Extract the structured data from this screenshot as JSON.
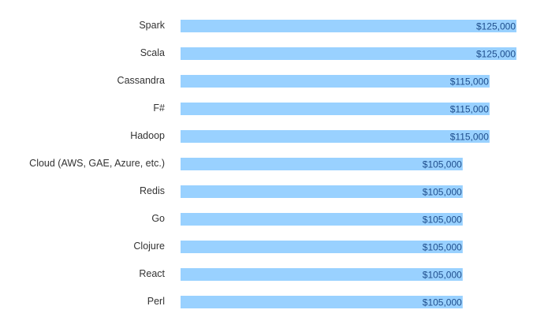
{
  "colors": {
    "bar": "#99d1ff",
    "value_text": "#1f4e8c",
    "category_text": "#333333",
    "background": "#ffffff"
  },
  "chart_data": {
    "type": "bar",
    "orientation": "horizontal",
    "title": "",
    "xlabel": "",
    "ylabel": "",
    "grid": false,
    "legend": "none",
    "xlim": [
      0,
      125000
    ],
    "categories": [
      "Spark",
      "Scala",
      "Cassandra",
      "F#",
      "Hadoop",
      "Cloud (AWS, GAE, Azure, etc.)",
      "Redis",
      "Go",
      "Clojure",
      "React",
      "Perl"
    ],
    "values": [
      125000,
      125000,
      115000,
      115000,
      115000,
      105000,
      105000,
      105000,
      105000,
      105000,
      105000
    ],
    "value_labels": [
      "$125,000",
      "$125,000",
      "$115,000",
      "$115,000",
      "$115,000",
      "$105,000",
      "$105,000",
      "$105,000",
      "$105,000",
      "$105,000",
      "$105,000"
    ]
  }
}
